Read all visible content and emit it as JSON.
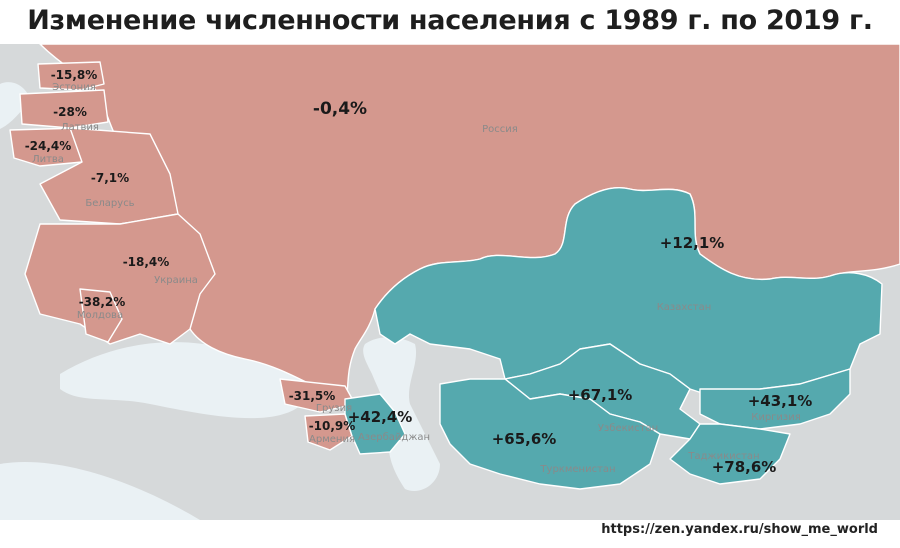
{
  "title": "Изменение численности населения с 1989 г. по 2019 г.",
  "credit": "https://zen.yandex.ru/show_me_world",
  "colors": {
    "decline": "#d4988e",
    "growth": "#55a9ae",
    "foreign": "#d6d9da",
    "water": "#eaf1f4"
  },
  "countries": {
    "russia": {
      "name": "Россия",
      "change": "-0,4%"
    },
    "estonia": {
      "name": "Эстония",
      "change": "-15,8%"
    },
    "latvia": {
      "name": "Латвия",
      "change": "-28%"
    },
    "lithuania": {
      "name": "Литва",
      "change": "-24,4%"
    },
    "belarus": {
      "name": "Беларусь",
      "change": "-7,1%"
    },
    "ukraine": {
      "name": "Украина",
      "change": "-18,4%"
    },
    "moldova": {
      "name": "Молдова",
      "change": "-38,2%"
    },
    "georgia": {
      "name": "Грузия",
      "change": "-31,5%"
    },
    "armenia": {
      "name": "Армения",
      "change": "-10,9%"
    },
    "azerbaijan": {
      "name": "Азербайджан",
      "change": "+42,4%"
    },
    "kazakhstan": {
      "name": "Казахстан",
      "change": "+12,1%"
    },
    "uzbekistan": {
      "name": "Узбекистан",
      "change": "+67,1%"
    },
    "turkmenistan": {
      "name": "Туркменистан",
      "change": "+65,6%"
    },
    "kyrgyzstan": {
      "name": "Киргизия",
      "change": "+43,1%"
    },
    "tajikistan": {
      "name": "Таджикистан",
      "change": "+78,6%"
    }
  }
}
